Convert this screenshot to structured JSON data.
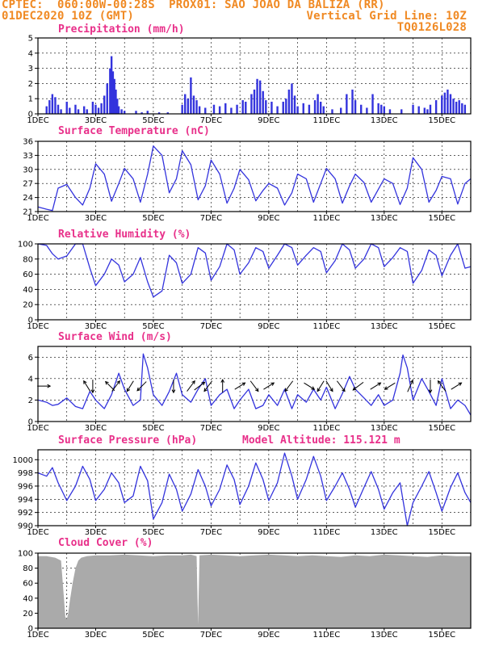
{
  "header": {
    "line1_left": "CPTEC:  060:00W-00:28S  PROX01: SAO JOAO DA BALIZA (RR)",
    "line2_left": "01DEC2020 10Z (GMT)",
    "line2_right": "Vertical Grid Line: 10Z",
    "line3_right": "TQ0126L028",
    "colors": {
      "header": "#f08a24",
      "panel_title": "#e8308a",
      "series": "#3333dd",
      "cloud": "#aaaaaa"
    }
  },
  "x_axis": {
    "tick_labels": [
      "1DEC",
      "3DEC",
      "5DEC",
      "7DEC",
      "9DEC",
      "11DEC",
      "13DEC",
      "15DEC"
    ],
    "range_days": [
      1,
      16
    ],
    "grid": "vertical lines daily at 10Z"
  },
  "chart_data": [
    {
      "id": "precip",
      "type": "bar",
      "title": "Precipitation (mm/h)",
      "ylim": [
        0,
        5
      ],
      "yticks": [
        0,
        1,
        2,
        3,
        4,
        5
      ],
      "x": [
        1.3,
        1.4,
        1.5,
        1.6,
        1.7,
        1.8,
        2.0,
        2.1,
        2.3,
        2.4,
        2.6,
        2.7,
        2.9,
        3.0,
        3.1,
        3.2,
        3.3,
        3.4,
        3.5,
        3.55,
        3.6,
        3.65,
        3.7,
        3.75,
        3.8,
        3.9,
        4.0,
        4.4,
        4.6,
        4.8,
        5.2,
        5.5,
        6.0,
        6.1,
        6.2,
        6.3,
        6.4,
        6.5,
        6.6,
        6.8,
        7.1,
        7.3,
        7.5,
        7.7,
        7.9,
        8.1,
        8.2,
        8.4,
        8.5,
        8.6,
        8.7,
        8.8,
        8.9,
        9.1,
        9.3,
        9.5,
        9.6,
        9.7,
        9.8,
        9.9,
        10.0,
        10.2,
        10.4,
        10.6,
        10.7,
        10.8,
        10.9,
        11.2,
        11.5,
        11.7,
        11.9,
        12.0,
        12.2,
        12.4,
        12.6,
        12.8,
        12.9,
        13.0,
        13.2,
        13.6,
        14.0,
        14.2,
        14.4,
        14.5,
        14.6,
        14.8,
        15.0,
        15.1,
        15.2,
        15.3,
        15.4,
        15.5,
        15.6,
        15.7,
        15.8
      ],
      "values": [
        0.5,
        0.9,
        1.3,
        1.1,
        0.6,
        0.3,
        0.8,
        0.4,
        0.6,
        0.3,
        0.5,
        0.3,
        0.8,
        0.6,
        0.4,
        0.7,
        1.2,
        2.0,
        3.0,
        3.8,
        2.8,
        2.3,
        1.6,
        1.0,
        0.5,
        0.3,
        0.2,
        0.2,
        0.1,
        0.2,
        0.1,
        0.1,
        0.6,
        1.3,
        1.0,
        2.4,
        1.2,
        0.9,
        0.5,
        0.4,
        0.6,
        0.5,
        0.7,
        0.4,
        0.6,
        0.9,
        0.8,
        1.3,
        1.6,
        2.3,
        2.2,
        1.5,
        0.9,
        0.8,
        0.5,
        0.8,
        1.0,
        1.6,
        2.0,
        1.2,
        0.5,
        0.7,
        0.6,
        0.9,
        1.3,
        0.8,
        0.5,
        0.3,
        0.4,
        1.3,
        1.6,
        0.9,
        0.6,
        0.4,
        1.3,
        0.7,
        0.6,
        0.5,
        0.3,
        0.3,
        0.6,
        0.5,
        0.4,
        0.3,
        0.6,
        0.9,
        1.2,
        1.4,
        1.6,
        1.3,
        1.0,
        0.8,
        0.9,
        0.7,
        0.6
      ]
    },
    {
      "id": "temp",
      "type": "line",
      "title": "Surface Temperature (nC)",
      "ylim": [
        21,
        36
      ],
      "yticks": [
        21,
        24,
        27,
        30,
        33,
        36
      ],
      "x": [
        1.0,
        1.3,
        1.5,
        1.7,
        2.0,
        2.3,
        2.55,
        2.8,
        3.0,
        3.3,
        3.55,
        3.8,
        4.0,
        4.3,
        4.55,
        4.8,
        5.0,
        5.3,
        5.55,
        5.8,
        6.0,
        6.3,
        6.55,
        6.8,
        7.0,
        7.3,
        7.55,
        7.8,
        8.0,
        8.3,
        8.55,
        8.8,
        9.0,
        9.3,
        9.55,
        9.8,
        10.0,
        10.3,
        10.55,
        10.8,
        11.0,
        11.3,
        11.55,
        11.8,
        12.0,
        12.3,
        12.55,
        12.8,
        13.0,
        13.3,
        13.55,
        13.8,
        14.0,
        14.3,
        14.55,
        14.8,
        15.0,
        15.3,
        15.55,
        15.8,
        16.0
      ],
      "values": [
        22.0,
        21.5,
        21.2,
        26.0,
        26.8,
        24.0,
        22.4,
        26.0,
        31.2,
        29.0,
        23.2,
        27.0,
        30.2,
        28.0,
        23.0,
        29.0,
        35.0,
        33.0,
        25.0,
        28.0,
        34.0,
        31.0,
        23.5,
        26.5,
        32.0,
        29.0,
        22.8,
        26.0,
        30.0,
        27.8,
        23.3,
        25.5,
        27.0,
        26.0,
        22.4,
        25.0,
        29.0,
        28.0,
        23.0,
        27.0,
        30.2,
        28.0,
        22.8,
        26.5,
        29.0,
        27.2,
        23.0,
        25.8,
        28.0,
        27.0,
        22.5,
        26.0,
        32.5,
        30.0,
        23.0,
        25.5,
        28.5,
        28.0,
        22.6,
        27.0,
        28.0
      ]
    },
    {
      "id": "rh",
      "type": "line",
      "title": "Relative Humidity (%)",
      "ylim": [
        0,
        100
      ],
      "yticks": [
        0,
        20,
        40,
        60,
        80,
        100
      ],
      "x": [
        1.0,
        1.3,
        1.5,
        1.7,
        2.0,
        2.3,
        2.55,
        2.8,
        3.0,
        3.3,
        3.55,
        3.8,
        4.0,
        4.3,
        4.55,
        4.8,
        5.0,
        5.3,
        5.55,
        5.8,
        6.0,
        6.3,
        6.55,
        6.8,
        7.0,
        7.3,
        7.55,
        7.8,
        8.0,
        8.3,
        8.55,
        8.8,
        9.0,
        9.3,
        9.55,
        9.8,
        10.0,
        10.3,
        10.55,
        10.8,
        11.0,
        11.3,
        11.55,
        11.8,
        12.0,
        12.3,
        12.55,
        12.8,
        13.0,
        13.3,
        13.55,
        13.8,
        14.0,
        14.3,
        14.55,
        14.8,
        15.0,
        15.3,
        15.55,
        15.8,
        16.0
      ],
      "values": [
        100,
        98,
        87,
        80,
        84,
        100,
        100,
        68,
        45,
        60,
        80,
        72,
        50,
        60,
        82,
        50,
        30,
        38,
        85,
        75,
        48,
        60,
        95,
        88,
        52,
        70,
        100,
        92,
        60,
        75,
        95,
        90,
        68,
        85,
        100,
        95,
        72,
        85,
        95,
        90,
        62,
        78,
        100,
        92,
        68,
        80,
        100,
        95,
        70,
        82,
        95,
        90,
        48,
        65,
        92,
        85,
        58,
        85,
        100,
        68,
        70
      ]
    },
    {
      "id": "wind",
      "type": "line",
      "title": "Surface Wind (m/s)",
      "ylim": [
        0,
        7
      ],
      "yticks": [
        0,
        2,
        4,
        6
      ],
      "x": [
        1.0,
        1.3,
        1.5,
        1.7,
        2.0,
        2.3,
        2.55,
        2.8,
        3.0,
        3.3,
        3.55,
        3.8,
        4.0,
        4.3,
        4.55,
        4.65,
        4.8,
        5.0,
        5.3,
        5.55,
        5.8,
        6.0,
        6.3,
        6.55,
        6.8,
        7.0,
        7.3,
        7.55,
        7.8,
        8.0,
        8.3,
        8.55,
        8.8,
        9.0,
        9.3,
        9.55,
        9.8,
        10.0,
        10.3,
        10.55,
        10.8,
        11.0,
        11.3,
        11.55,
        11.8,
        12.0,
        12.3,
        12.55,
        12.8,
        13.0,
        13.3,
        13.55,
        13.65,
        13.8,
        14.0,
        14.3,
        14.55,
        14.8,
        15.0,
        15.3,
        15.55,
        15.8,
        16.0
      ],
      "values": [
        2.0,
        1.8,
        1.5,
        1.6,
        2.2,
        1.4,
        1.2,
        2.8,
        2.0,
        1.2,
        2.5,
        4.5,
        3.0,
        1.5,
        2.0,
        6.3,
        5.0,
        2.5,
        1.5,
        2.8,
        4.5,
        2.5,
        1.8,
        3.0,
        4.0,
        1.5,
        2.5,
        3.0,
        1.2,
        2.0,
        3.0,
        1.2,
        1.5,
        2.5,
        1.5,
        3.0,
        1.2,
        2.5,
        1.8,
        3.0,
        2.0,
        3.2,
        1.2,
        2.6,
        4.2,
        3.0,
        2.2,
        1.5,
        2.5,
        1.5,
        2.0,
        4.5,
        6.2,
        5.0,
        2.0,
        4.0,
        2.8,
        1.5,
        4.0,
        1.2,
        2.0,
        1.5,
        0.6
      ],
      "arrows": [
        {
          "x": 1.2,
          "dx": 1,
          "dy": 0
        },
        {
          "x": 2.7,
          "dx": -0.5,
          "dy": 0.8
        },
        {
          "x": 2.9,
          "dx": 0,
          "dy": -1
        },
        {
          "x": 3.5,
          "dx": -0.7,
          "dy": 0.7
        },
        {
          "x": 3.7,
          "dx": 0.6,
          "dy": 0.8
        },
        {
          "x": 4.2,
          "dx": -0.5,
          "dy": -0.8
        },
        {
          "x": 4.6,
          "dx": -0.7,
          "dy": -0.7
        },
        {
          "x": 5.7,
          "dx": 0,
          "dy": -1
        },
        {
          "x": 6.3,
          "dx": 0.6,
          "dy": 0.8
        },
        {
          "x": 6.6,
          "dx": 0.8,
          "dy": 0.6
        },
        {
          "x": 6.9,
          "dx": -0.6,
          "dy": -0.8
        },
        {
          "x": 7.4,
          "dx": 0,
          "dy": 1
        },
        {
          "x": 8.0,
          "dx": 0.8,
          "dy": 0.5
        },
        {
          "x": 8.5,
          "dx": 0.6,
          "dy": -0.8
        },
        {
          "x": 9.0,
          "dx": 0.8,
          "dy": 0.5
        },
        {
          "x": 9.7,
          "dx": -0.6,
          "dy": -0.8
        },
        {
          "x": 10.4,
          "dx": 0.8,
          "dy": -0.5
        },
        {
          "x": 10.8,
          "dx": -0.5,
          "dy": -0.8
        },
        {
          "x": 11.1,
          "dx": 0.5,
          "dy": -0.8
        },
        {
          "x": 11.5,
          "dx": 0.6,
          "dy": -0.8
        },
        {
          "x": 12.1,
          "dx": -0.8,
          "dy": -0.6
        },
        {
          "x": 12.7,
          "dx": 0.8,
          "dy": 0.5
        },
        {
          "x": 13.2,
          "dx": -0.8,
          "dy": -0.5
        },
        {
          "x": 13.9,
          "dx": 0.4,
          "dy": 0.9
        },
        {
          "x": 14.6,
          "dx": 0,
          "dy": -1
        },
        {
          "x": 15.0,
          "dx": -0.6,
          "dy": 0.8
        },
        {
          "x": 15.5,
          "dx": 0.8,
          "dy": 0.5
        }
      ]
    },
    {
      "id": "pres",
      "type": "line",
      "title": "Surface Pressure (hPa)",
      "annotation": "Model Altitude: 115.121 m",
      "ylim": [
        990,
        1001.5
      ],
      "yticks": [
        990,
        992,
        994,
        996,
        998,
        1000
      ],
      "x": [
        1.0,
        1.3,
        1.5,
        1.7,
        2.0,
        2.3,
        2.55,
        2.8,
        3.0,
        3.3,
        3.55,
        3.8,
        4.0,
        4.3,
        4.55,
        4.8,
        5.0,
        5.3,
        5.55,
        5.8,
        6.0,
        6.3,
        6.55,
        6.8,
        7.0,
        7.3,
        7.55,
        7.8,
        8.0,
        8.3,
        8.55,
        8.8,
        9.0,
        9.3,
        9.55,
        9.8,
        10.0,
        10.3,
        10.55,
        10.8,
        11.0,
        11.3,
        11.55,
        11.8,
        12.0,
        12.3,
        12.55,
        12.8,
        13.0,
        13.3,
        13.55,
        13.8,
        14.0,
        14.3,
        14.55,
        14.8,
        15.0,
        15.3,
        15.55,
        15.8,
        16.0
      ],
      "values": [
        998.0,
        997.5,
        998.8,
        996.5,
        993.8,
        996.0,
        999.0,
        997.0,
        993.8,
        995.5,
        998.0,
        996.5,
        993.5,
        994.5,
        999.0,
        996.8,
        991.0,
        993.5,
        997.8,
        995.5,
        992.2,
        994.8,
        998.5,
        996.0,
        993.0,
        995.5,
        999.2,
        997.0,
        993.2,
        996.0,
        999.5,
        997.0,
        993.8,
        996.5,
        1001.0,
        997.5,
        994.0,
        997.0,
        1000.5,
        997.5,
        993.8,
        996.0,
        998.0,
        995.5,
        992.8,
        995.8,
        998.2,
        995.5,
        992.5,
        995.0,
        996.5,
        990.0,
        993.5,
        996.0,
        998.2,
        995.0,
        992.2,
        995.8,
        998.0,
        995.0,
        993.5
      ]
    },
    {
      "id": "cloud",
      "type": "area",
      "title": "Cloud Cover (%)",
      "ylim": [
        0,
        100
      ],
      "yticks": [
        0,
        20,
        40,
        60,
        80,
        100
      ],
      "x": [
        1.0,
        1.3,
        1.6,
        1.8,
        1.9,
        1.95,
        2.0,
        2.05,
        2.1,
        2.2,
        2.3,
        2.4,
        2.5,
        2.7,
        3.0,
        3.5,
        4.0,
        4.5,
        5.0,
        5.5,
        6.0,
        6.3,
        6.5,
        6.55,
        6.6,
        7.0,
        7.5,
        8.0,
        8.5,
        9.0,
        9.5,
        10.0,
        10.5,
        11.0,
        11.5,
        12.0,
        12.5,
        13.0,
        13.5,
        14.0,
        14.5,
        15.0,
        15.5,
        16.0
      ],
      "values": [
        96,
        96,
        94,
        90,
        40,
        15,
        12,
        20,
        35,
        60,
        80,
        90,
        94,
        96,
        97,
        97,
        98,
        97,
        96,
        97,
        97,
        98,
        96,
        5,
        97,
        98,
        97,
        96,
        97,
        98,
        97,
        96,
        97,
        96,
        95,
        97,
        96,
        98,
        97,
        96,
        95,
        97,
        96,
        96
      ]
    }
  ]
}
